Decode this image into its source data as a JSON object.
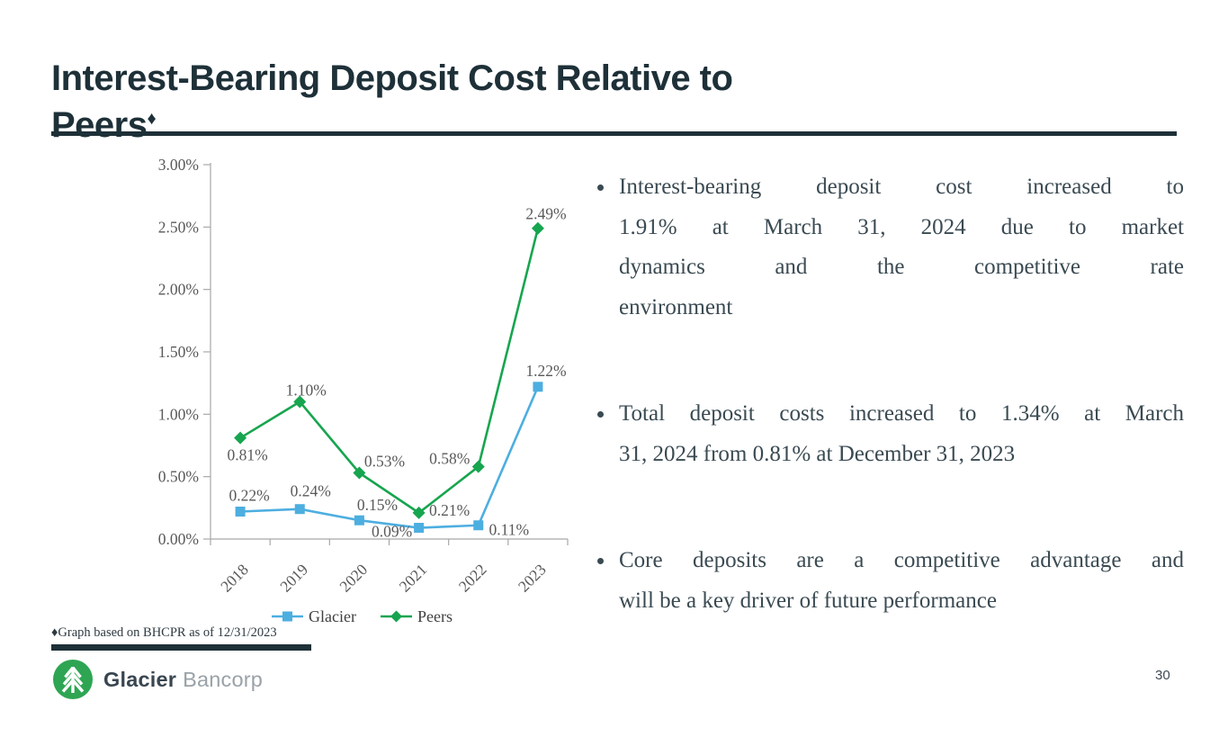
{
  "slide": {
    "title": {
      "line1": "Interest-Bearing Deposit Cost Relative to",
      "line2": "Peers",
      "footnote_marker": "♦"
    },
    "page_number": "30"
  },
  "chart_data": {
    "type": "line",
    "title": "",
    "xlabel": "",
    "ylabel": "",
    "categories": [
      "2018",
      "2019",
      "2020",
      "2021",
      "2022",
      "2023"
    ],
    "series": [
      {
        "name": "Glacier",
        "color": "#4DAEE0",
        "marker": "square",
        "values": [
          0.22,
          0.24,
          0.15,
          0.09,
          0.11,
          1.22
        ],
        "labels": [
          "0.22%",
          "0.24%",
          "0.15%",
          "0.09%",
          "0.11%",
          "1.22%"
        ]
      },
      {
        "name": "Peers",
        "color": "#17A54F",
        "marker": "diamond",
        "values": [
          0.81,
          1.1,
          0.53,
          0.21,
          0.58,
          2.49
        ],
        "labels": [
          "0.81%",
          "1.10%",
          "0.53%",
          "0.21%",
          "0.58%",
          "2.49%"
        ]
      }
    ],
    "ylim": [
      0,
      3
    ],
    "yticks": [
      0,
      0.5,
      1,
      1.5,
      2,
      2.5,
      3
    ],
    "ytick_labels": [
      "0.00%",
      "0.50%",
      "1.00%",
      "1.50%",
      "2.00%",
      "2.50%",
      "3.00%"
    ],
    "grid": false,
    "legend_position": "bottom"
  },
  "bullets": [
    "Interest-bearing deposit cost increased to 1.91% at March 31, 2024 due to market dynamics and the competitive rate environment",
    "Total deposit costs increased to 1.34% at March 31, 2024 from 0.81% at December 31, 2023",
    "Core deposits are a competitive advantage and will be a key driver of future performance"
  ],
  "footnote": "♦Graph based on BHCPR as of 12/31/2023",
  "logo": {
    "brand_bold": "Glacier",
    "brand_light": "Bancorp"
  },
  "colors": {
    "accent_dark": "#1E3038",
    "glacier_blue": "#4DAEE0",
    "peers_green": "#17A54F",
    "logo_green": "#2EA553",
    "chart_text": "#595959",
    "body_text": "#3A4A52"
  }
}
